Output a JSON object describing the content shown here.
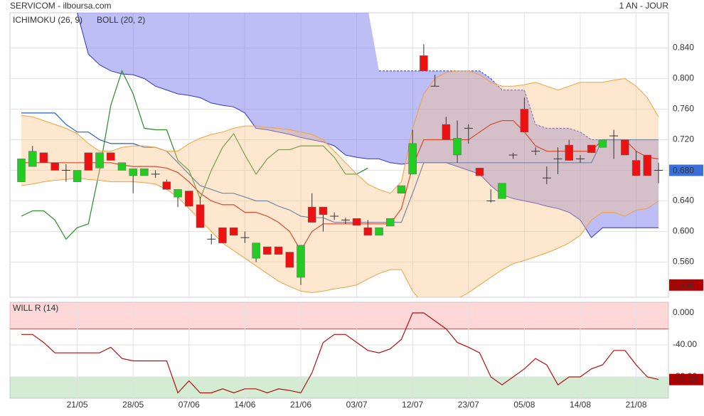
{
  "chart_data": [
    {
      "type": "candlestick",
      "title": "SERVICOM - ilboursa.com",
      "period": "1 AN - JOUR",
      "categories": [
        null,
        null,
        null,
        null,
        null,
        "21/05",
        null,
        null,
        null,
        null,
        "28/05",
        null,
        null,
        null,
        null,
        "07/06",
        null,
        null,
        null,
        null,
        "14/06",
        null,
        null,
        null,
        null,
        "21/06",
        null,
        null,
        null,
        null,
        "03/07",
        null,
        null,
        null,
        null,
        "12/07",
        null,
        null,
        null,
        null,
        "23/07",
        null,
        null,
        null,
        null,
        "05/08",
        null,
        null,
        null,
        null,
        "14/08",
        null,
        null,
        null,
        null,
        "21/08",
        null,
        null
      ],
      "open": [
        0.665,
        0.685,
        0.703,
        0.69,
        0.68,
        0.665,
        0.703,
        0.683,
        0.703,
        0.68,
        0.673,
        0.673,
        0.675,
        0.665,
        0.645,
        0.653,
        0.635,
        0.59,
        0.605,
        0.605,
        0.592,
        0.565,
        0.58,
        0.58,
        0.573,
        0.54,
        0.632,
        0.632,
        0.62,
        0.615,
        0.617,
        0.605,
        0.595,
        0.607,
        0.65,
        0.675,
        0.83,
        0.79,
        0.74,
        0.7,
        0.735,
        0.683,
        0.64,
        0.643,
        0.7,
        0.76,
        0.705,
        0.67,
        0.695,
        0.713,
        0.695,
        0.713,
        0.71,
        0.725,
        0.72,
        0.693,
        0.7,
        0.68
      ],
      "high": [
        0.695,
        0.712,
        0.703,
        0.69,
        0.688,
        0.68,
        0.703,
        0.703,
        0.703,
        0.69,
        0.682,
        0.682,
        0.68,
        0.668,
        0.655,
        0.653,
        0.645,
        0.597,
        0.605,
        0.605,
        0.6,
        0.585,
        0.58,
        0.58,
        0.573,
        0.582,
        0.65,
        0.632,
        0.625,
        0.618,
        0.617,
        0.615,
        0.605,
        0.617,
        0.66,
        0.733,
        0.845,
        0.805,
        0.75,
        0.745,
        0.74,
        0.683,
        0.655,
        0.663,
        0.703,
        0.775,
        0.71,
        0.685,
        0.71,
        0.72,
        0.7,
        0.713,
        0.72,
        0.733,
        0.72,
        0.705,
        0.7,
        0.69
      ],
      "low": [
        0.665,
        0.685,
        0.69,
        0.68,
        0.665,
        0.665,
        0.68,
        0.683,
        0.693,
        0.68,
        0.65,
        0.673,
        0.67,
        0.655,
        0.632,
        0.633,
        0.605,
        0.583,
        0.585,
        0.595,
        0.585,
        0.56,
        0.57,
        0.57,
        0.553,
        0.53,
        0.612,
        0.6,
        0.615,
        0.61,
        0.608,
        0.595,
        0.595,
        0.607,
        0.65,
        0.675,
        0.81,
        0.79,
        0.72,
        0.69,
        0.715,
        0.673,
        0.638,
        0.643,
        0.695,
        0.73,
        0.7,
        0.662,
        0.675,
        0.693,
        0.69,
        0.703,
        0.71,
        0.695,
        0.7,
        0.673,
        0.673,
        0.663
      ],
      "close": [
        0.695,
        0.705,
        0.69,
        0.68,
        0.68,
        0.68,
        0.68,
        0.703,
        0.693,
        0.69,
        0.682,
        0.682,
        0.675,
        0.655,
        0.655,
        0.633,
        0.605,
        0.59,
        0.585,
        0.595,
        0.592,
        0.585,
        0.57,
        0.57,
        0.553,
        0.582,
        0.612,
        0.622,
        0.62,
        0.615,
        0.608,
        0.595,
        0.605,
        0.617,
        0.66,
        0.715,
        0.81,
        0.79,
        0.72,
        0.722,
        0.735,
        0.673,
        0.64,
        0.663,
        0.7,
        0.73,
        0.705,
        0.67,
        0.695,
        0.693,
        0.695,
        0.703,
        0.72,
        0.725,
        0.7,
        0.673,
        0.673,
        0.68
      ],
      "up_color": "#22cc22",
      "down_color": "#ee1111",
      "indicators": [
        {
          "name": "ICHIMOKU (26, 9)",
          "color": "#2255aa",
          "lines": [
            {
              "color": "#c00000",
              "values": [
                0.69,
                0.69,
                0.69,
                0.69,
                0.69,
                0.69,
                0.69,
                0.69,
                0.69,
                0.687,
                0.685,
                0.685,
                0.685,
                0.683,
                0.677,
                0.665,
                0.65,
                0.64,
                0.635,
                0.635,
                0.625,
                0.625,
                0.62,
                0.612,
                0.6,
                0.575,
                0.6,
                0.61,
                0.61,
                0.61,
                0.61,
                0.61,
                0.61,
                0.61,
                0.63,
                0.685,
                0.72,
                0.72,
                0.72,
                0.72,
                0.72,
                0.73,
                0.74,
                0.745,
                0.745,
                0.73,
                0.712,
                0.705,
                0.705,
                0.705,
                0.705,
                0.705,
                0.72,
                0.72,
                0.72,
                0.705,
                0.697,
                0.695
              ]
            },
            {
              "color": "#2d5fb8",
              "values": [
                0.755,
                0.755,
                0.755,
                0.755,
                0.74,
                0.73,
                0.73,
                0.72,
                0.715,
                0.715,
                0.715,
                0.71,
                0.71,
                0.705,
                0.69,
                0.675,
                0.66,
                0.655,
                0.65,
                0.65,
                0.645,
                0.64,
                0.64,
                0.633,
                0.628,
                0.62,
                0.618,
                0.618,
                0.612,
                0.612,
                0.612,
                0.612,
                0.612,
                0.612,
                0.612,
                0.65,
                0.69,
                0.69,
                0.69,
                0.69,
                0.69,
                0.69,
                0.69,
                0.69,
                0.69,
                0.69,
                0.69,
                0.69,
                0.69,
                0.69,
                0.69,
                0.69,
                0.72,
                0.72,
                0.72,
                0.72,
                0.72,
                0.72
              ]
            },
            {
              "color": "#2a8a2a",
              "values": [
                0.62,
                0.627,
                0.627,
                0.615,
                0.59,
                0.605,
                0.61,
                0.68,
                0.765,
                0.81,
                0.78,
                0.735,
                0.733,
                0.733,
                0.693,
                0.68,
                0.643,
                0.68,
                0.71,
                0.728,
                0.7,
                0.675,
                0.695,
                0.707,
                0.707,
                0.712,
                0.712,
                0.712,
                0.697,
                0.675,
                0.675,
                0.683,
                null,
                null,
                null,
                null,
                null,
                null,
                null,
                null,
                null,
                null,
                null,
                null,
                null,
                null,
                null,
                null,
                null,
                null,
                null,
                null,
                null,
                null,
                null,
                null,
                null,
                null
              ]
            }
          ],
          "cloud": {
            "fill": "rgba(110,110,235,0.45)",
            "stroke": "#3333cc",
            "upper_dashed": true,
            "lower": [
              null,
              null,
              null,
              null,
              null,
              0.886,
              0.832,
              0.818,
              0.81,
              0.806,
              0.805,
              0.8,
              0.79,
              0.785,
              0.78,
              0.778,
              0.775,
              0.768,
              0.765,
              0.763,
              0.755,
              0.735,
              0.733,
              0.73,
              0.727,
              0.723,
              0.72,
              0.717,
              0.712,
              0.7,
              0.697,
              0.695,
              0.695,
              0.69,
              0.688,
              0.69,
              0.69,
              0.69,
              0.69,
              0.685,
              0.68,
              0.675,
              0.66,
              0.648,
              0.643,
              0.64,
              0.637,
              0.633,
              0.63,
              0.625,
              0.615,
              0.592,
              0.605,
              0.605,
              0.605,
              0.605,
              0.605,
              0.605
            ],
            "upper": [
              null,
              null,
              null,
              null,
              null,
              null,
              null,
              null,
              null,
              null,
              null,
              null,
              null,
              null,
              null,
              null,
              null,
              null,
              null,
              null,
              null,
              null,
              null,
              null,
              null,
              null,
              null,
              null,
              null,
              null,
              null,
              null,
              0.81,
              0.81,
              0.81,
              0.81,
              0.81,
              0.81,
              0.81,
              0.81,
              0.81,
              0.81,
              0.8,
              0.785,
              0.785,
              0.785,
              0.74,
              0.735,
              0.735,
              0.735,
              0.73,
              0.72,
              0.72,
              0.72,
              0.72,
              0.72,
              0.72,
              0.72
            ]
          }
        },
        {
          "name": "BOLL (20, 2)",
          "color": "#e08a3c",
          "band": {
            "fill": "rgba(250,195,130,0.38)",
            "stroke": "#f0a040",
            "upper": [
              0.752,
              0.75,
              0.745,
              0.74,
              0.735,
              0.728,
              0.715,
              0.705,
              0.705,
              0.71,
              0.712,
              0.712,
              0.71,
              0.705,
              0.705,
              0.715,
              0.722,
              0.727,
              0.73,
              0.735,
              0.738,
              0.738,
              0.736,
              0.735,
              0.733,
              0.73,
              0.727,
              0.72,
              0.705,
              0.69,
              0.675,
              0.662,
              0.655,
              0.65,
              0.665,
              0.735,
              0.78,
              0.8,
              0.808,
              0.81,
              0.81,
              0.805,
              0.795,
              0.79,
              0.79,
              0.792,
              0.795,
              0.79,
              0.785,
              0.79,
              0.795,
              0.795,
              0.795,
              0.798,
              0.8,
              0.79,
              0.775,
              0.75
            ],
            "lower": [
              0.66,
              0.662,
              0.665,
              0.667,
              0.668,
              0.67,
              0.668,
              0.667,
              0.665,
              0.665,
              0.665,
              0.664,
              0.662,
              0.655,
              0.645,
              0.63,
              0.615,
              0.6,
              0.585,
              0.575,
              0.565,
              0.555,
              0.545,
              0.535,
              0.528,
              0.522,
              0.52,
              0.522,
              0.525,
              0.527,
              0.53,
              0.538,
              0.545,
              0.55,
              0.55,
              0.522,
              0.505,
              0.505,
              0.507,
              0.512,
              0.52,
              0.53,
              0.54,
              0.55,
              0.558,
              0.562,
              0.567,
              0.572,
              0.578,
              0.585,
              0.595,
              0.615,
              0.625,
              0.625,
              0.62,
              0.628,
              0.63,
              0.64
            ]
          }
        }
      ],
      "ylim": [
        0.514,
        0.886
      ],
      "yticks": [
        {
          "value": 0.56,
          "label": "0.560"
        },
        {
          "value": 0.6,
          "label": "0.600"
        },
        {
          "value": 0.64,
          "label": "0.640"
        },
        {
          "value": 0.68,
          "label": "0.680"
        },
        {
          "value": 0.72,
          "label": "0.720"
        },
        {
          "value": 0.76,
          "label": "0.760"
        },
        {
          "value": 0.8,
          "label": "0.800"
        },
        {
          "value": 0.84,
          "label": "0.840"
        }
      ],
      "markers": [
        {
          "value": 0.68,
          "label": "0.680",
          "color": "#3a6fd8"
        },
        {
          "value": 0.53,
          "label": "0.530",
          "color": "#b00000"
        }
      ],
      "grid": true
    },
    {
      "type": "line",
      "title": "WILL R (14)",
      "color": "#b01010",
      "values": [
        -27,
        -27,
        -37,
        -50,
        -50,
        -50,
        -50,
        -50,
        -43,
        -57,
        -60,
        -60,
        -60,
        -60,
        -100,
        -85,
        -100,
        -100,
        -95,
        -100,
        -95,
        -95,
        -100,
        -95,
        -97,
        -100,
        -75,
        -37,
        -27,
        -27,
        -37,
        -47,
        -50,
        -45,
        -33,
        0,
        0,
        -10,
        -20,
        -37,
        -43,
        -50,
        -80,
        -90,
        -80,
        -70,
        -57,
        -65,
        -90,
        -80,
        -80,
        -70,
        -65,
        -47,
        -47,
        -65,
        -80,
        -83.33
      ],
      "ylim": [
        -106.7,
        13.3
      ],
      "yticks": [
        {
          "value": 0,
          "label": "0.000"
        },
        {
          "value": -40,
          "label": "-40.00"
        },
        {
          "value": -80,
          "label": "-80.00"
        }
      ],
      "zones": [
        {
          "level": -20,
          "side": "above",
          "fill": "rgba(255,140,140,0.35)",
          "stroke": "#d06060"
        },
        {
          "level": -80,
          "side": "below",
          "fill": "rgba(130,200,130,0.35)",
          "stroke": "#5a9a5a"
        }
      ],
      "markers": [
        {
          "value": -83.33,
          "label": "-83.33",
          "color": "#b00000"
        }
      ],
      "grid": true
    }
  ]
}
